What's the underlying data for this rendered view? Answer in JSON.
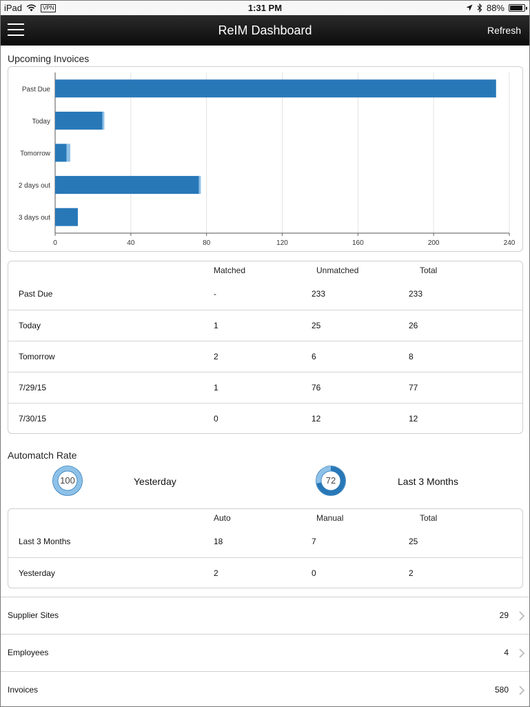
{
  "status_bar": {
    "carrier": "iPad",
    "vpn": "VPN",
    "time": "1:31 PM",
    "battery": "88%",
    "battery_level": 0.88
  },
  "header": {
    "title": "ReIM Dashboard",
    "refresh_label": "Refresh",
    "menu_icon": "hamburger-menu-icon"
  },
  "upcoming": {
    "title": "Upcoming Invoices"
  },
  "chart_data": {
    "type": "bar",
    "orientation": "horizontal",
    "stacked": true,
    "categories": [
      "Past Due",
      "Today",
      "Tomorrow",
      "2 days out",
      "3 days out"
    ],
    "series": [
      {
        "values": [
          233,
          25,
          6,
          76,
          12
        ],
        "color": "#2878b8"
      },
      {
        "values": [
          0,
          1,
          2,
          1,
          0
        ],
        "color": "#8ec1e8"
      }
    ],
    "xlim": [
      0,
      240
    ],
    "xticks": [
      "0",
      "40",
      "80",
      "120",
      "160",
      "200",
      "240"
    ],
    "grid": true
  },
  "invoice_table": {
    "headers": [
      "Matched",
      "Unmatched",
      "Total"
    ],
    "rows": [
      {
        "label": "Past Due",
        "matched": "-",
        "unmatched": "233",
        "total": "233"
      },
      {
        "label": "Today",
        "matched": "1",
        "unmatched": "25",
        "total": "26"
      },
      {
        "label": "Tomorrow",
        "matched": "2",
        "unmatched": "6",
        "total": "8"
      },
      {
        "label": "7/29/15",
        "matched": "1",
        "unmatched": "76",
        "total": "77"
      },
      {
        "label": "7/30/15",
        "matched": "0",
        "unmatched": "12",
        "total": "12"
      }
    ]
  },
  "automatch": {
    "title": "Automatch Rate",
    "yesterday": {
      "value": "100",
      "percent": 100,
      "label": "Yesterday"
    },
    "last3": {
      "value": "72",
      "percent": 72,
      "label": "Last 3 Months"
    },
    "ring_dark": "#2878b8",
    "ring_light": "#8ec1e8",
    "headers": [
      "Auto",
      "Manual",
      "Total"
    ],
    "rows": [
      {
        "label": "Last 3 Months",
        "auto": "18",
        "manual": "7",
        "total": "25"
      },
      {
        "label": "Yesterday",
        "auto": "2",
        "manual": "0",
        "total": "2"
      }
    ]
  },
  "summary_list": [
    {
      "label": "Supplier Sites",
      "count": "29"
    },
    {
      "label": "Employees",
      "count": "4"
    },
    {
      "label": "Invoices",
      "count": "580"
    }
  ]
}
